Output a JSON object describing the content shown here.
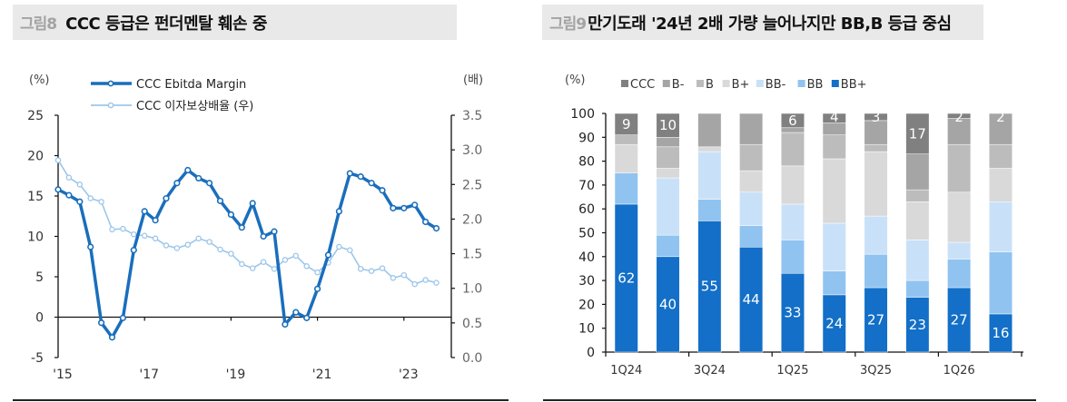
{
  "left": {
    "fig_label": "그림8",
    "title": "CCC 등급은 펀더멘탈 훼손 중",
    "unit_left": "(%)",
    "unit_right": "(배)",
    "legend": [
      "CCC Ebitda Margin",
      "CCC 이자보상배율 (우)"
    ]
  },
  "right": {
    "fig_label": "그림9",
    "title": "만기도래 '24년 2배 가량 늘어나지만 BB,B 등급 중심",
    "unit_left": "(%)",
    "legend": [
      "CCC",
      "B-",
      "B",
      "B+",
      "BB-",
      "BB",
      "BB+"
    ]
  },
  "colors": {
    "ebitda": "#1a6ebc",
    "coverage": "#9cc6ea",
    "CCC": "#808080",
    "B-": "#a5a5a5",
    "B": "#bcbcbc",
    "B+": "#d9d9d9",
    "BB-": "#c9e1f8",
    "BB": "#90c3f0",
    "BB+": "#136fc7"
  },
  "chart_data": [
    {
      "type": "line",
      "title": "CCC 등급은 펀더멘탈 훼손 중",
      "xlabel": "",
      "ylabel": "(%)",
      "ylabel_right": "(배)",
      "x_ticks": [
        "'15",
        "'17",
        "'19",
        "'21",
        "'23"
      ],
      "ylim": [
        -5,
        25
      ],
      "y_ticks": [
        -5,
        0,
        5,
        10,
        15,
        20,
        25
      ],
      "ylim_right": [
        0.0,
        3.5
      ],
      "y_ticks_right": [
        "0.0",
        "0.5",
        "1.0",
        "1.5",
        "2.0",
        "2.5",
        "3.0",
        "3.5"
      ],
      "legend_position": "top-left",
      "grid": false,
      "series": [
        {
          "name": "CCC Ebitda Margin",
          "axis": "left",
          "values": [
            15.8,
            15.1,
            14.3,
            8.7,
            -0.7,
            -2.5,
            -0.1,
            8.3,
            13.1,
            12.0,
            14.7,
            16.6,
            18.2,
            17.2,
            16.6,
            14.4,
            12.7,
            11.1,
            14.1,
            10.0,
            10.6,
            -0.9,
            0.6,
            -0.1,
            3.5,
            7.7,
            13.1,
            17.8,
            17.4,
            16.6,
            15.7,
            13.5,
            13.5,
            13.9,
            11.8,
            11.0
          ]
        },
        {
          "name": "CCC 이자보상배율 (우)",
          "axis": "right",
          "values": [
            2.85,
            2.6,
            2.5,
            2.3,
            2.25,
            1.85,
            1.86,
            1.78,
            1.76,
            1.72,
            1.62,
            1.58,
            1.63,
            1.72,
            1.67,
            1.56,
            1.5,
            1.35,
            1.29,
            1.38,
            1.28,
            1.41,
            1.47,
            1.32,
            1.23,
            1.37,
            1.6,
            1.55,
            1.28,
            1.25,
            1.29,
            1.15,
            1.19,
            1.06,
            1.12,
            1.08
          ]
        }
      ]
    },
    {
      "type": "bar",
      "stacked": true,
      "title": "만기도래 '24년 2배 가량 늘어나지만 BB,B 등급 중심",
      "ylabel": "(%)",
      "ylim": [
        0,
        100
      ],
      "y_ticks": [
        0,
        10,
        20,
        30,
        40,
        50,
        60,
        70,
        80,
        90,
        100
      ],
      "categories": [
        "1Q24",
        "2Q24",
        "3Q24",
        "4Q24",
        "1Q25",
        "2Q25",
        "3Q25",
        "4Q25",
        "1Q26",
        "2Q26"
      ],
      "x_tick_labels": [
        "1Q24",
        "3Q24",
        "1Q25",
        "3Q25",
        "1Q26"
      ],
      "legend_position": "top",
      "series": [
        {
          "name": "BB+",
          "values": [
            62,
            40,
            55,
            44,
            33,
            24,
            27,
            23,
            27,
            16
          ],
          "labels": true
        },
        {
          "name": "BB",
          "values": [
            13,
            9,
            9,
            9,
            14,
            10,
            14,
            7,
            12,
            26
          ]
        },
        {
          "name": "BB-",
          "values": [
            0,
            24,
            20,
            14,
            15,
            20,
            16,
            17,
            7,
            21
          ]
        },
        {
          "name": "B+",
          "values": [
            12,
            4,
            2,
            9,
            16,
            27,
            27,
            16,
            21,
            14
          ]
        },
        {
          "name": "B",
          "values": [
            4,
            9,
            0,
            11,
            14,
            10,
            3,
            5,
            20,
            10
          ]
        },
        {
          "name": "B-",
          "values": [
            0,
            4,
            14,
            13,
            2,
            5,
            10,
            15,
            11,
            13
          ]
        },
        {
          "name": "CCC",
          "values": [
            9,
            10,
            0,
            0,
            6,
            4,
            3,
            17,
            2,
            2
          ],
          "labels": true
        }
      ]
    }
  ]
}
